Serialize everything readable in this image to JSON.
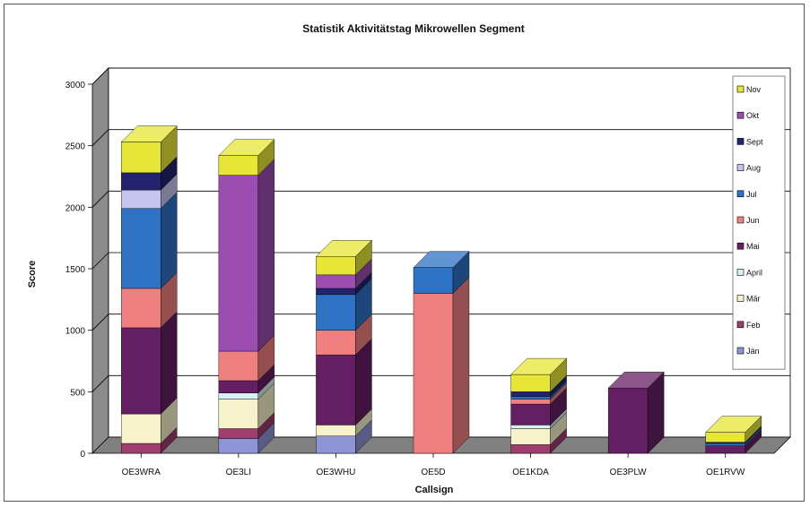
{
  "chart_data": {
    "type": "bar",
    "stacked": true,
    "three_d": true,
    "title": "Statistik Aktivitätstag Mikrowellen Segment",
    "xlabel": "Callsign",
    "ylabel": "Score",
    "ylim": [
      0,
      3000
    ],
    "yticks": [
      0,
      500,
      1000,
      1500,
      2000,
      2500,
      3000
    ],
    "grid": true,
    "legend_position": "right",
    "categories": [
      "OE3WRA",
      "OE3LI",
      "OE3WHU",
      "OE5D",
      "OE1KDA",
      "OE3PLW",
      "OE1RVW"
    ],
    "series": [
      {
        "name": "Jän",
        "color": "#8d95d6",
        "values": [
          0,
          120,
          140,
          0,
          0,
          0,
          0
        ]
      },
      {
        "name": "Feb",
        "color": "#9e3d6e",
        "values": [
          80,
          80,
          0,
          0,
          70,
          0,
          0
        ]
      },
      {
        "name": "Mär",
        "color": "#f7f2cc",
        "values": [
          240,
          240,
          90,
          0,
          130,
          0,
          0
        ]
      },
      {
        "name": "April",
        "color": "#d7f0f4",
        "values": [
          0,
          50,
          0,
          0,
          30,
          0,
          0
        ]
      },
      {
        "name": "Mai",
        "color": "#641f62",
        "values": [
          700,
          100,
          570,
          0,
          170,
          530,
          60
        ]
      },
      {
        "name": "Jun",
        "color": "#f08080",
        "values": [
          320,
          240,
          200,
          1300,
          40,
          0,
          0
        ]
      },
      {
        "name": "Jul",
        "color": "#2e72c4",
        "values": [
          650,
          0,
          290,
          210,
          20,
          0,
          20
        ]
      },
      {
        "name": "Aug",
        "color": "#c4c4ee",
        "values": [
          150,
          0,
          0,
          0,
          0,
          0,
          0
        ]
      },
      {
        "name": "Sept",
        "color": "#24246e",
        "values": [
          140,
          0,
          50,
          0,
          40,
          0,
          10
        ]
      },
      {
        "name": "Okt",
        "color": "#9b4db0",
        "values": [
          0,
          1430,
          110,
          0,
          0,
          0,
          0
        ]
      },
      {
        "name": "Nov",
        "color": "#e7e637",
        "values": [
          250,
          160,
          150,
          0,
          140,
          0,
          80
        ]
      }
    ]
  }
}
